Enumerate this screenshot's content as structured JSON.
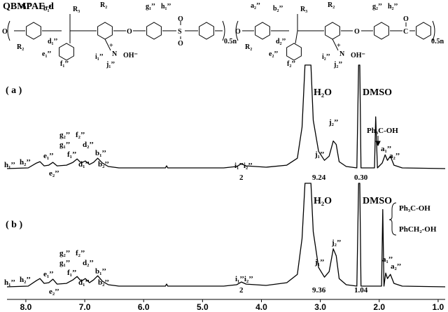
{
  "chart_data": [
    {
      "type": "line",
      "title": "QBMPAE-d",
      "structure_labels": [
        "a₁’’",
        "b₁’’",
        "R₃",
        "R₂",
        "R₂",
        "d₁’’",
        "e₁’’",
        "f₁’’",
        "g₁’’",
        "h₁’’",
        "i₁’’",
        "+",
        "N",
        "OH⁻",
        "j₁’’",
        "0.5n",
        "a₂’’",
        "b₂’’",
        "R₃",
        "R₂",
        "R₂",
        "d₂’’",
        "e₂’’",
        "f₂’’",
        "g₂’’",
        "h₂’’",
        "i₂’’",
        "+",
        "N",
        "OH⁻",
        "j₂’’",
        "0.5n",
        "O",
        "O",
        "S",
        "O",
        "O",
        "O",
        "O",
        "C",
        "O"
      ],
      "panel_label": "( a )",
      "x": [
        8.32,
        7.96,
        7.82,
        7.76,
        7.69,
        7.61,
        7.54,
        7.47,
        7.31,
        7.2,
        7.13,
        7.06,
        6.99,
        6.92,
        6.85,
        6.78,
        6.7,
        6.6,
        6.42,
        5.63,
        5.61,
        5.59,
        4.64,
        4.42,
        4.34,
        4.26,
        3.92,
        3.57,
        3.39,
        3.31,
        3.26,
        3.16,
        3.12,
        3.03,
        2.93,
        2.85,
        2.78,
        2.73,
        2.68,
        2.56,
        2.38,
        2.35,
        2.33,
        2.31,
        2.08,
        2.06,
        2.03,
        1.95,
        1.9,
        1.86,
        1.81,
        1.75,
        1.61,
        0.88
      ],
      "values": [
        0,
        1,
        8,
        10,
        4,
        5,
        9,
        4,
        5,
        9,
        14,
        8,
        11,
        6,
        9,
        15,
        8,
        3,
        1,
        1,
        4,
        1,
        1,
        3,
        7,
        4,
        2,
        5,
        15,
        60,
        150,
        150,
        70,
        25,
        12,
        18,
        40,
        35,
        10,
        3,
        1,
        150,
        150,
        1,
        1,
        75,
        1,
        8,
        20,
        12,
        18,
        5,
        1,
        0
      ],
      "color": "#000000",
      "xlim": [
        8.32,
        0.88
      ],
      "ylim": [
        0,
        150
      ],
      "annotations": [
        "H₂O",
        "DMSO",
        "Ph₃C-OH",
        "j₂’’",
        "j₁’’",
        "a₁’’",
        "a₂’’",
        "i₁’’i₂’’",
        "h₁’’",
        "h₂’’",
        "g₂’’",
        "g₁’’",
        "f₂’’",
        "d₂’’",
        "e₁’’",
        "f₁’’",
        "d₁’’",
        "b₁’’",
        "b₂’’",
        "e₂’’"
      ],
      "integrals": [
        2,
        9.24,
        {
          "value": 0.3,
          "label": "0.30"
        }
      ]
    },
    {
      "type": "line",
      "panel_label": "( b )",
      "x": [
        8.32,
        7.96,
        7.82,
        7.76,
        7.69,
        7.61,
        7.54,
        7.47,
        7.31,
        7.2,
        7.13,
        7.06,
        6.99,
        6.92,
        6.85,
        6.78,
        6.7,
        6.6,
        6.42,
        5.63,
        5.61,
        5.59,
        4.64,
        4.42,
        4.34,
        4.26,
        3.92,
        3.57,
        3.39,
        3.31,
        3.26,
        3.16,
        3.12,
        3.03,
        2.93,
        2.85,
        2.78,
        2.73,
        2.68,
        2.56,
        2.38,
        2.35,
        2.33,
        2.31,
        1.96,
        1.94,
        1.92,
        1.89,
        1.86,
        1.81,
        1.75,
        1.61,
        0.88
      ],
      "values": [
        0,
        1,
        9,
        12,
        5,
        6,
        11,
        4,
        5,
        10,
        15,
        8,
        12,
        6,
        10,
        16,
        8,
        3,
        1,
        1,
        4,
        1,
        1,
        3,
        7,
        4,
        2,
        6,
        18,
        70,
        150,
        150,
        80,
        28,
        14,
        22,
        55,
        45,
        12,
        3,
        1,
        150,
        150,
        1,
        1,
        112,
        1,
        20,
        12,
        18,
        5,
        1,
        0
      ],
      "color": "#000000",
      "xlim": [
        8.32,
        0.88
      ],
      "ylim": [
        0,
        150
      ],
      "xticks": [
        {
          "value": 8,
          "label": "8.0"
        },
        {
          "value": 7,
          "label": "7.0"
        },
        {
          "value": 6,
          "label": "6.0"
        },
        {
          "value": 5,
          "label": "5.0"
        },
        {
          "value": 4,
          "label": "4.0"
        },
        {
          "value": 3,
          "label": "3.0"
        },
        {
          "value": 2,
          "label": "2.0"
        },
        {
          "value": 1,
          "label": "1.0"
        }
      ],
      "annotations": [
        "H₂O",
        "DMSO",
        "Ph₃C-OH",
        "PhCH₂-OH",
        "j₂’’",
        "j₁’’",
        "a₁’’",
        "a₂’’",
        "i₁’’i₂’’",
        "h₁’’",
        "h₂’’",
        "g₂’’",
        "g₁’’",
        "f₂’’",
        "d₂’’",
        "e₁’’",
        "f₁’’",
        "d₁’’",
        "b₁’’",
        "b₂’’",
        "e₂’’"
      ],
      "integrals": [
        2,
        9.36,
        1.04
      ]
    }
  ]
}
